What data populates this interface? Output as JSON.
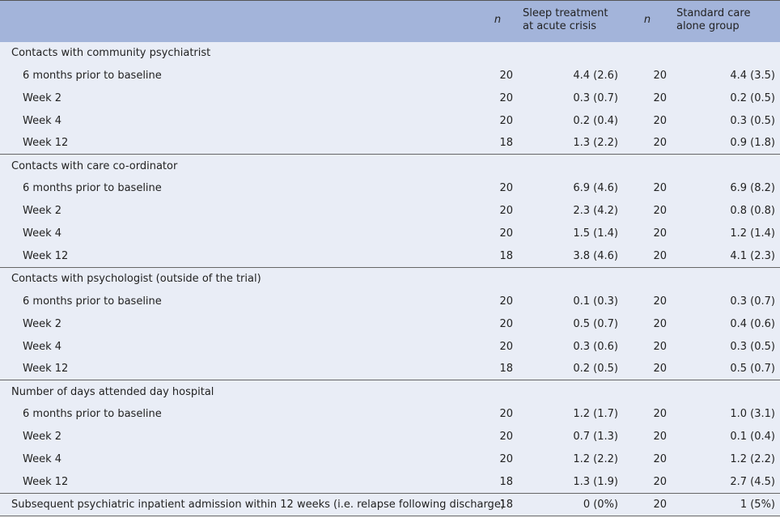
{
  "table": {
    "header": [
      "",
      "n",
      [
        "Sleep treatment",
        "at acute crisis"
      ],
      "n",
      [
        "Standard care",
        "alone group"
      ]
    ],
    "sections": [
      {
        "title": "Contacts with community psychiatrist",
        "rows": [
          [
            "6 months prior to baseline",
            20,
            "4.4 (2.6)",
            20,
            "4.4 (3.5)"
          ],
          [
            "Week 2",
            20,
            "0.3 (0.7)",
            20,
            "0.2 (0.5)"
          ],
          [
            "Week 4",
            20,
            "0.2 (0.4)",
            20,
            "0.3 (0.5)"
          ],
          [
            "Week 12",
            18,
            "1.3 (2.2)",
            20,
            "0.9 (1.8)"
          ]
        ]
      },
      {
        "title": "Contacts with care co-ordinator",
        "rows": [
          [
            "6 months prior to baseline",
            20,
            "6.9 (4.6)",
            20,
            "6.9 (8.2)"
          ],
          [
            "Week 2",
            20,
            "2.3 (4.2)",
            20,
            "0.8 (0.8)"
          ],
          [
            "Week 4",
            20,
            "1.5 (1.4)",
            20,
            "1.2 (1.4)"
          ],
          [
            "Week 12",
            18,
            "3.8 (4.6)",
            20,
            "4.1 (2.3)"
          ]
        ]
      },
      {
        "title": "Contacts with psychologist (outside of the trial)",
        "rows": [
          [
            "6 months prior to baseline",
            20,
            "0.1 (0.3)",
            20,
            "0.3 (0.7)"
          ],
          [
            "Week 2",
            20,
            "0.5 (0.7)",
            20,
            "0.4 (0.6)"
          ],
          [
            "Week 4",
            20,
            "0.3 (0.6)",
            20,
            "0.3 (0.5)"
          ],
          [
            "Week 12",
            18,
            "0.2 (0.5)",
            20,
            "0.5 (0.7)"
          ]
        ]
      },
      {
        "title": "Number of days attended day hospital",
        "rows": [
          [
            "6 months prior to baseline",
            20,
            "1.2 (1.7)",
            20,
            "1.0 (3.1)"
          ],
          [
            "Week 2",
            20,
            "0.7 (1.3)",
            20,
            "0.1 (0.4)"
          ],
          [
            "Week 4",
            20,
            "1.2 (2.2)",
            20,
            "1.2 (2.2)"
          ],
          [
            "Week 12",
            18,
            "1.3 (1.9)",
            20,
            "2.7 (4.5)"
          ]
        ]
      }
    ],
    "final_row": [
      "Subsequent psychiatric inpatient admission within 12 weeks (i.e. relapse following discharge)",
      18,
      "0 (0%)",
      20,
      "1 (5%)"
    ]
  }
}
